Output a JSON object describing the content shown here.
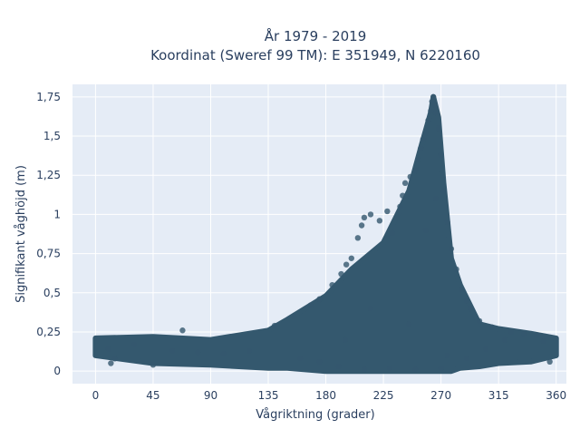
{
  "chart_data": {
    "type": "scatter",
    "title_line1": "År 1979 - 2019",
    "title_line2": "Koordinat (Sweref 99 TM): E 351949, N 6220160",
    "xlabel": "Vågriktning (grader)",
    "ylabel": "Signifikant våghöjd (m)",
    "xlim": [
      -18,
      368
    ],
    "ylim": [
      -0.08,
      1.83
    ],
    "x_ticks": [
      0,
      45,
      90,
      135,
      180,
      225,
      270,
      315,
      360
    ],
    "x_tick_labels": [
      "0",
      "45",
      "90",
      "135",
      "180",
      "225",
      "270",
      "315",
      "360"
    ],
    "y_ticks": [
      0,
      0.25,
      0.5,
      0.75,
      1,
      1.25,
      1.5,
      1.75
    ],
    "y_tick_labels": [
      "0",
      "0,25",
      "0,5",
      "0,75",
      "1",
      "1,25",
      "1,5",
      "1,75"
    ],
    "grid": true,
    "marker_color": "#34586e",
    "plot_bg": "#e5ecf6",
    "envelope": [
      {
        "x": 0,
        "ymin": 0.1,
        "ymax": 0.21
      },
      {
        "x": 45,
        "ymin": 0.05,
        "ymax": 0.22
      },
      {
        "x": 90,
        "ymin": 0.04,
        "ymax": 0.2
      },
      {
        "x": 135,
        "ymin": 0.02,
        "ymax": 0.26
      },
      {
        "x": 150,
        "ymin": 0.02,
        "ymax": 0.33
      },
      {
        "x": 180,
        "ymin": 0.0,
        "ymax": 0.48
      },
      {
        "x": 200,
        "ymin": 0.0,
        "ymax": 0.65
      },
      {
        "x": 225,
        "ymin": 0.0,
        "ymax": 0.82
      },
      {
        "x": 245,
        "ymin": 0.0,
        "ymax": 1.15
      },
      {
        "x": 255,
        "ymin": 0.0,
        "ymax": 1.45
      },
      {
        "x": 262,
        "ymin": 0.0,
        "ymax": 1.65
      },
      {
        "x": 264,
        "ymin": 0.0,
        "ymax": 1.75
      },
      {
        "x": 268,
        "ymin": 0.0,
        "ymax": 1.62
      },
      {
        "x": 272,
        "ymin": 0.0,
        "ymax": 1.2
      },
      {
        "x": 278,
        "ymin": 0.0,
        "ymax": 0.72
      },
      {
        "x": 285,
        "ymin": 0.02,
        "ymax": 0.55
      },
      {
        "x": 300,
        "ymin": 0.03,
        "ymax": 0.3
      },
      {
        "x": 315,
        "ymin": 0.05,
        "ymax": 0.27
      },
      {
        "x": 340,
        "ymin": 0.06,
        "ymax": 0.24
      },
      {
        "x": 360,
        "ymin": 0.1,
        "ymax": 0.21
      }
    ],
    "points": [
      [
        12,
        0.05
      ],
      [
        15,
        0.08
      ],
      [
        45,
        0.04
      ],
      [
        68,
        0.26
      ],
      [
        10,
        0.14
      ],
      [
        30,
        0.17
      ],
      [
        60,
        0.13
      ],
      [
        80,
        0.12
      ],
      [
        100,
        0.11
      ],
      [
        120,
        0.13
      ],
      [
        140,
        0.29
      ],
      [
        155,
        0.35
      ],
      [
        168,
        0.42
      ],
      [
        175,
        0.46
      ],
      [
        185,
        0.55
      ],
      [
        192,
        0.62
      ],
      [
        196,
        0.68
      ],
      [
        200,
        0.72
      ],
      [
        205,
        0.85
      ],
      [
        208,
        0.93
      ],
      [
        210,
        0.98
      ],
      [
        215,
        1.0
      ],
      [
        222,
        0.96
      ],
      [
        228,
        1.02
      ],
      [
        232,
        0.88
      ],
      [
        238,
        1.05
      ],
      [
        240,
        1.12
      ],
      [
        242,
        1.2
      ],
      [
        246,
        1.24
      ],
      [
        250,
        1.28
      ],
      [
        252,
        1.35
      ],
      [
        254,
        1.42
      ],
      [
        256,
        1.48
      ],
      [
        258,
        1.52
      ],
      [
        260,
        1.6
      ],
      [
        262,
        1.66
      ],
      [
        263,
        1.72
      ],
      [
        264,
        1.75
      ],
      [
        265,
        1.7
      ],
      [
        266,
        1.65
      ],
      [
        268,
        1.55
      ],
      [
        270,
        1.38
      ],
      [
        272,
        1.15
      ],
      [
        275,
        0.95
      ],
      [
        278,
        0.78
      ],
      [
        282,
        0.65
      ],
      [
        286,
        0.52
      ],
      [
        290,
        0.45
      ],
      [
        293,
        0.4
      ],
      [
        300,
        0.32
      ],
      [
        310,
        0.28
      ],
      [
        325,
        0.25
      ],
      [
        335,
        0.24
      ],
      [
        345,
        0.23
      ],
      [
        355,
        0.06
      ],
      [
        350,
        0.19
      ],
      [
        320,
        0.2
      ],
      [
        305,
        0.14
      ],
      [
        290,
        0.08
      ],
      [
        270,
        0.02
      ],
      [
        250,
        0.01
      ],
      [
        230,
        0.02
      ],
      [
        210,
        0.01
      ],
      [
        190,
        0.03
      ],
      [
        175,
        0.06
      ],
      [
        160,
        0.08
      ],
      [
        275,
        0.1
      ],
      [
        245,
        0.3
      ],
      [
        215,
        0.4
      ],
      [
        195,
        0.2
      ],
      [
        258,
        0.9
      ],
      [
        266,
        1.1
      ]
    ]
  }
}
